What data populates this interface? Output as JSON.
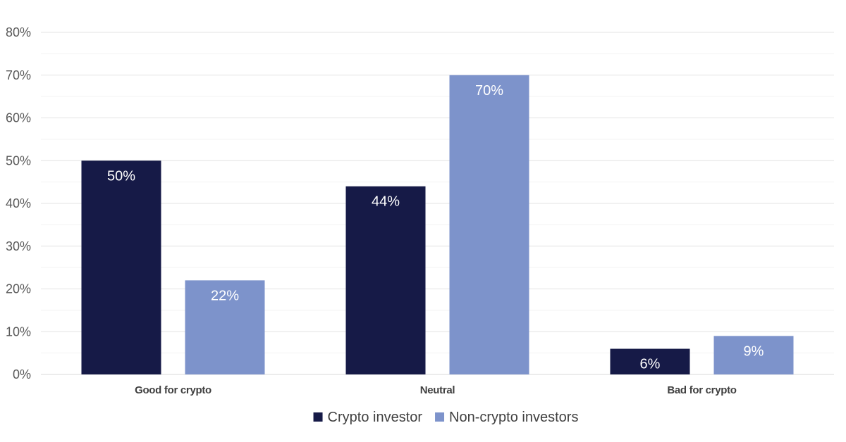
{
  "chart_data": {
    "type": "bar",
    "title": "",
    "xlabel": "",
    "ylabel": "",
    "categories": [
      "Good for crypto",
      "Neutral",
      "Bad for crypto"
    ],
    "series": [
      {
        "name": "Crypto investor",
        "values": [
          50,
          44,
          6
        ],
        "labels": [
          "50%",
          "44%",
          "6%"
        ],
        "color": "#161a47"
      },
      {
        "name": "Non-crypto investors",
        "values": [
          22,
          70,
          9
        ],
        "labels": [
          "22%",
          "70%",
          "9%"
        ],
        "color": "#7d93cb"
      }
    ],
    "ylim": [
      0,
      80
    ],
    "yticks": [
      0,
      10,
      20,
      30,
      40,
      50,
      60,
      70,
      80
    ],
    "ytick_labels": [
      "0%",
      "10%",
      "20%",
      "30%",
      "40%",
      "50%",
      "60%",
      "70%",
      "80%"
    ],
    "grid": true,
    "legend_position": "bottom"
  }
}
